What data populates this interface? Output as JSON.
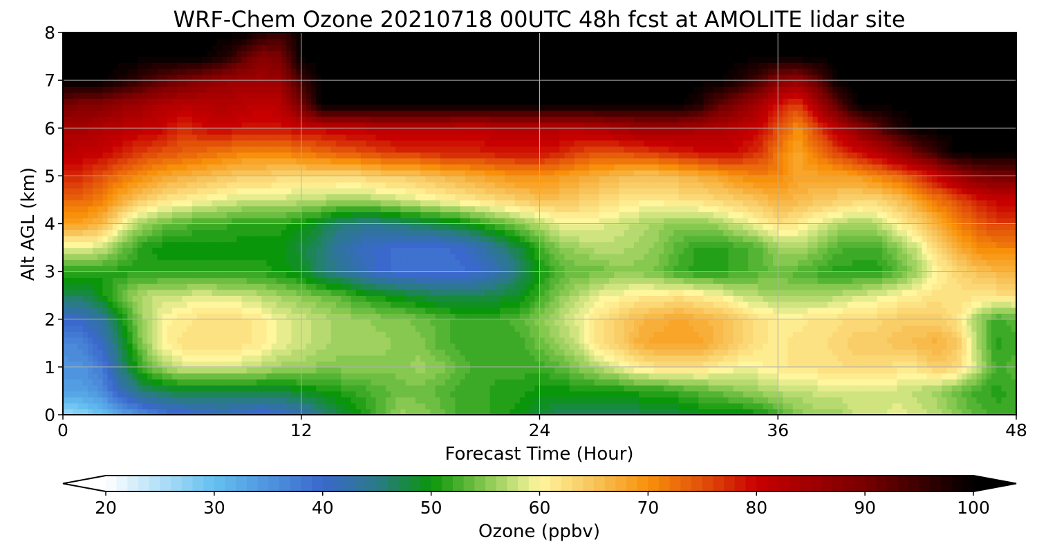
{
  "chart_data": {
    "type": "heatmap",
    "title": "WRF-Chem Ozone  20210718 00UTC 48h fcst at AMOLITE lidar site",
    "xlabel": "Forecast Time (Hour)",
    "ylabel": "Alt AGL (km)",
    "xlim": [
      0,
      48
    ],
    "ylim": [
      0,
      8
    ],
    "x_ticks": [
      0,
      12,
      24,
      36,
      48
    ],
    "y_ticks": [
      0,
      1,
      2,
      3,
      4,
      5,
      6,
      7,
      8
    ],
    "grid": true,
    "colorbar": {
      "label": "Ozone  (ppbv)",
      "range": [
        20,
        100
      ],
      "ticks": [
        20,
        30,
        40,
        50,
        60,
        70,
        80,
        90,
        100
      ],
      "extend": "both",
      "placement": "bottom"
    },
    "colormap": [
      {
        "value": 20,
        "color": "#ffffff"
      },
      {
        "value": 30,
        "color": "#64c0f0"
      },
      {
        "value": 40,
        "color": "#3a68cc"
      },
      {
        "value": 45,
        "color": "#2a7a88"
      },
      {
        "value": 50,
        "color": "#0a960a"
      },
      {
        "value": 55,
        "color": "#86c850"
      },
      {
        "value": 60,
        "color": "#fff69e"
      },
      {
        "value": 65,
        "color": "#f8c45a"
      },
      {
        "value": 70,
        "color": "#f8900a"
      },
      {
        "value": 75,
        "color": "#e2500a"
      },
      {
        "value": 80,
        "color": "#c80000"
      },
      {
        "value": 90,
        "color": "#780000"
      },
      {
        "value": 100,
        "color": "#000000"
      }
    ],
    "grid_x": [
      0,
      1,
      2,
      3,
      4,
      5,
      6,
      7,
      8,
      9,
      10,
      11,
      12,
      13,
      14,
      15,
      16,
      17,
      18,
      19,
      20,
      21,
      22,
      23,
      24,
      25,
      26,
      27,
      28,
      29,
      30,
      31,
      32,
      33,
      34,
      35,
      36,
      37,
      38,
      39,
      40,
      41,
      42,
      43,
      44,
      45,
      46,
      47,
      48
    ],
    "grid_y": [
      0,
      0.5,
      1,
      1.5,
      2,
      2.5,
      3,
      3.5,
      4,
      4.5,
      5,
      5.5,
      6,
      6.5,
      7,
      7.5,
      8
    ],
    "z_rows": [
      [
        26,
        27,
        30,
        33,
        36,
        38,
        39,
        40,
        41,
        40,
        39,
        40,
        42,
        45,
        48,
        50,
        53,
        56,
        55,
        54,
        52,
        52,
        51,
        50,
        48,
        47,
        47,
        47,
        47,
        47,
        47,
        48,
        49,
        49,
        49,
        50,
        52,
        55,
        56,
        56,
        58,
        58,
        59,
        58,
        57,
        55,
        53,
        52,
        52
      ],
      [
        34,
        34,
        36,
        42,
        46,
        47,
        48,
        48,
        48,
        48,
        48,
        48,
        49,
        50,
        51,
        52,
        53,
        54,
        54,
        53,
        52,
        52,
        51,
        51,
        50,
        50,
        50,
        50,
        50,
        51,
        51,
        52,
        53,
        54,
        55,
        56,
        57,
        57,
        58,
        58,
        58,
        58,
        58,
        57,
        56,
        54,
        52,
        51,
        52
      ],
      [
        35,
        35,
        38,
        46,
        52,
        56,
        58,
        58,
        58,
        58,
        57,
        56,
        56,
        55,
        55,
        55,
        55,
        55,
        56,
        55,
        53,
        52,
        52,
        52,
        52,
        53,
        55,
        57,
        59,
        61,
        62,
        62,
        62,
        61,
        60,
        60,
        61,
        62,
        62,
        62,
        63,
        63,
        62,
        62,
        64,
        63,
        58,
        52,
        53
      ],
      [
        36,
        37,
        41,
        48,
        55,
        60,
        62,
        62,
        62,
        62,
        61,
        59,
        58,
        57,
        56,
        56,
        56,
        55,
        55,
        53,
        52,
        52,
        52,
        52,
        54,
        56,
        58,
        62,
        64,
        67,
        68,
        68,
        68,
        66,
        64,
        62,
        61,
        62,
        62,
        63,
        64,
        64,
        65,
        66,
        67,
        65,
        57,
        51,
        52
      ],
      [
        40,
        41,
        44,
        50,
        56,
        60,
        61,
        62,
        62,
        62,
        61,
        59,
        58,
        57,
        56,
        56,
        55,
        55,
        54,
        53,
        52,
        52,
        52,
        53,
        55,
        57,
        59,
        62,
        64,
        66,
        67,
        68,
        67,
        66,
        64,
        62,
        61,
        61,
        62,
        62,
        63,
        63,
        64,
        64,
        64,
        62,
        56,
        52,
        53
      ],
      [
        47,
        47,
        50,
        54,
        57,
        58,
        58,
        59,
        58,
        58,
        57,
        56,
        55,
        54,
        53,
        51,
        50,
        49,
        48,
        47,
        47,
        47,
        48,
        49,
        52,
        55,
        57,
        59,
        60,
        61,
        61,
        62,
        61,
        60,
        58,
        57,
        56,
        56,
        56,
        57,
        58,
        59,
        60,
        61,
        62,
        62,
        62,
        62,
        62
      ],
      [
        51,
        51,
        51,
        51,
        51,
        51,
        51,
        51,
        51,
        51,
        51,
        50,
        49,
        46,
        44,
        42,
        40,
        39,
        39,
        39,
        39,
        40,
        42,
        46,
        50,
        53,
        54,
        54,
        55,
        55,
        54,
        52,
        51,
        51,
        52,
        53,
        54,
        53,
        52,
        51,
        51,
        51,
        53,
        56,
        60,
        63,
        65,
        66,
        66
      ],
      [
        59,
        59,
        58,
        54,
        51,
        50,
        50,
        50,
        50,
        50,
        50,
        50,
        48,
        46,
        43,
        41,
        40,
        39,
        39,
        39,
        40,
        42,
        45,
        48,
        52,
        55,
        56,
        57,
        57,
        56,
        55,
        53,
        51,
        51,
        52,
        53,
        56,
        57,
        55,
        53,
        52,
        52,
        55,
        58,
        63,
        67,
        70,
        71,
        71
      ],
      [
        68,
        68,
        66,
        60,
        56,
        54,
        53,
        52,
        52,
        51,
        51,
        51,
        50,
        48,
        46,
        45,
        45,
        46,
        47,
        48,
        49,
        51,
        53,
        55,
        57,
        59,
        60,
        59,
        58,
        57,
        56,
        55,
        55,
        56,
        58,
        60,
        62,
        61,
        59,
        57,
        56,
        57,
        60,
        63,
        67,
        71,
        74,
        76,
        76
      ],
      [
        73,
        73,
        71,
        67,
        64,
        62,
        61,
        60,
        59,
        58,
        58,
        58,
        57,
        57,
        56,
        56,
        57,
        58,
        59,
        60,
        61,
        62,
        63,
        64,
        65,
        65,
        64,
        63,
        62,
        61,
        61,
        62,
        62,
        63,
        64,
        65,
        67,
        66,
        65,
        64,
        63,
        63,
        65,
        68,
        72,
        75,
        78,
        80,
        80
      ],
      [
        78,
        77,
        75,
        72,
        70,
        68,
        67,
        66,
        65,
        64,
        64,
        63,
        63,
        63,
        63,
        63,
        64,
        64,
        65,
        66,
        67,
        68,
        69,
        70,
        70,
        69,
        68,
        67,
        66,
        65,
        65,
        66,
        67,
        68,
        70,
        71,
        71,
        68,
        68,
        68,
        69,
        71,
        73,
        76,
        80,
        85,
        89,
        90,
        90
      ],
      [
        82,
        81,
        80,
        78,
        76,
        75,
        74,
        73,
        72,
        71,
        71,
        71,
        72,
        73,
        74,
        75,
        76,
        77,
        77,
        78,
        78,
        78,
        79,
        79,
        79,
        78,
        76,
        75,
        75,
        76,
        77,
        78,
        79,
        80,
        79,
        77,
        72,
        68,
        72,
        76,
        79,
        82,
        86,
        91,
        96,
        100,
        100,
        100,
        100
      ],
      [
        84,
        84,
        83,
        82,
        81,
        80,
        77,
        79,
        80,
        79,
        79,
        79,
        80,
        80,
        81,
        81,
        82,
        82,
        82,
        82,
        81,
        81,
        82,
        82,
        82,
        82,
        82,
        83,
        84,
        85,
        85,
        85,
        84,
        83,
        82,
        80,
        75,
        70,
        76,
        82,
        87,
        92,
        97,
        100,
        100,
        100,
        100,
        100,
        100
      ],
      [
        90,
        89,
        88,
        86,
        85,
        83,
        82,
        82,
        83,
        82,
        81,
        82,
        90,
        100,
        100,
        100,
        100,
        100,
        100,
        100,
        100,
        100,
        100,
        100,
        100,
        100,
        100,
        100,
        100,
        100,
        100,
        100,
        98,
        92,
        88,
        84,
        79,
        76,
        84,
        92,
        100,
        100,
        100,
        100,
        100,
        100,
        100,
        100,
        100
      ],
      [
        100,
        100,
        100,
        98,
        95,
        92,
        90,
        88,
        86,
        85,
        85,
        86,
        95,
        100,
        100,
        100,
        100,
        100,
        100,
        100,
        100,
        100,
        100,
        100,
        100,
        100,
        100,
        100,
        100,
        100,
        100,
        100,
        100,
        100,
        98,
        94,
        88,
        86,
        92,
        100,
        100,
        100,
        100,
        100,
        100,
        100,
        100,
        100,
        100
      ],
      [
        100,
        100,
        100,
        100,
        100,
        100,
        100,
        100,
        98,
        93,
        88,
        90,
        100,
        100,
        100,
        100,
        100,
        100,
        100,
        100,
        100,
        100,
        100,
        100,
        100,
        100,
        100,
        100,
        100,
        100,
        100,
        100,
        100,
        100,
        100,
        100,
        100,
        100,
        100,
        100,
        100,
        100,
        100,
        100,
        100,
        100,
        100,
        100,
        100
      ],
      [
        100,
        100,
        100,
        100,
        100,
        100,
        100,
        100,
        100,
        100,
        97,
        95,
        100,
        100,
        100,
        100,
        100,
        100,
        100,
        100,
        100,
        100,
        100,
        100,
        100,
        100,
        100,
        100,
        100,
        100,
        100,
        100,
        100,
        100,
        100,
        100,
        100,
        100,
        100,
        100,
        100,
        100,
        100,
        100,
        100,
        100,
        100,
        100,
        100
      ]
    ]
  }
}
